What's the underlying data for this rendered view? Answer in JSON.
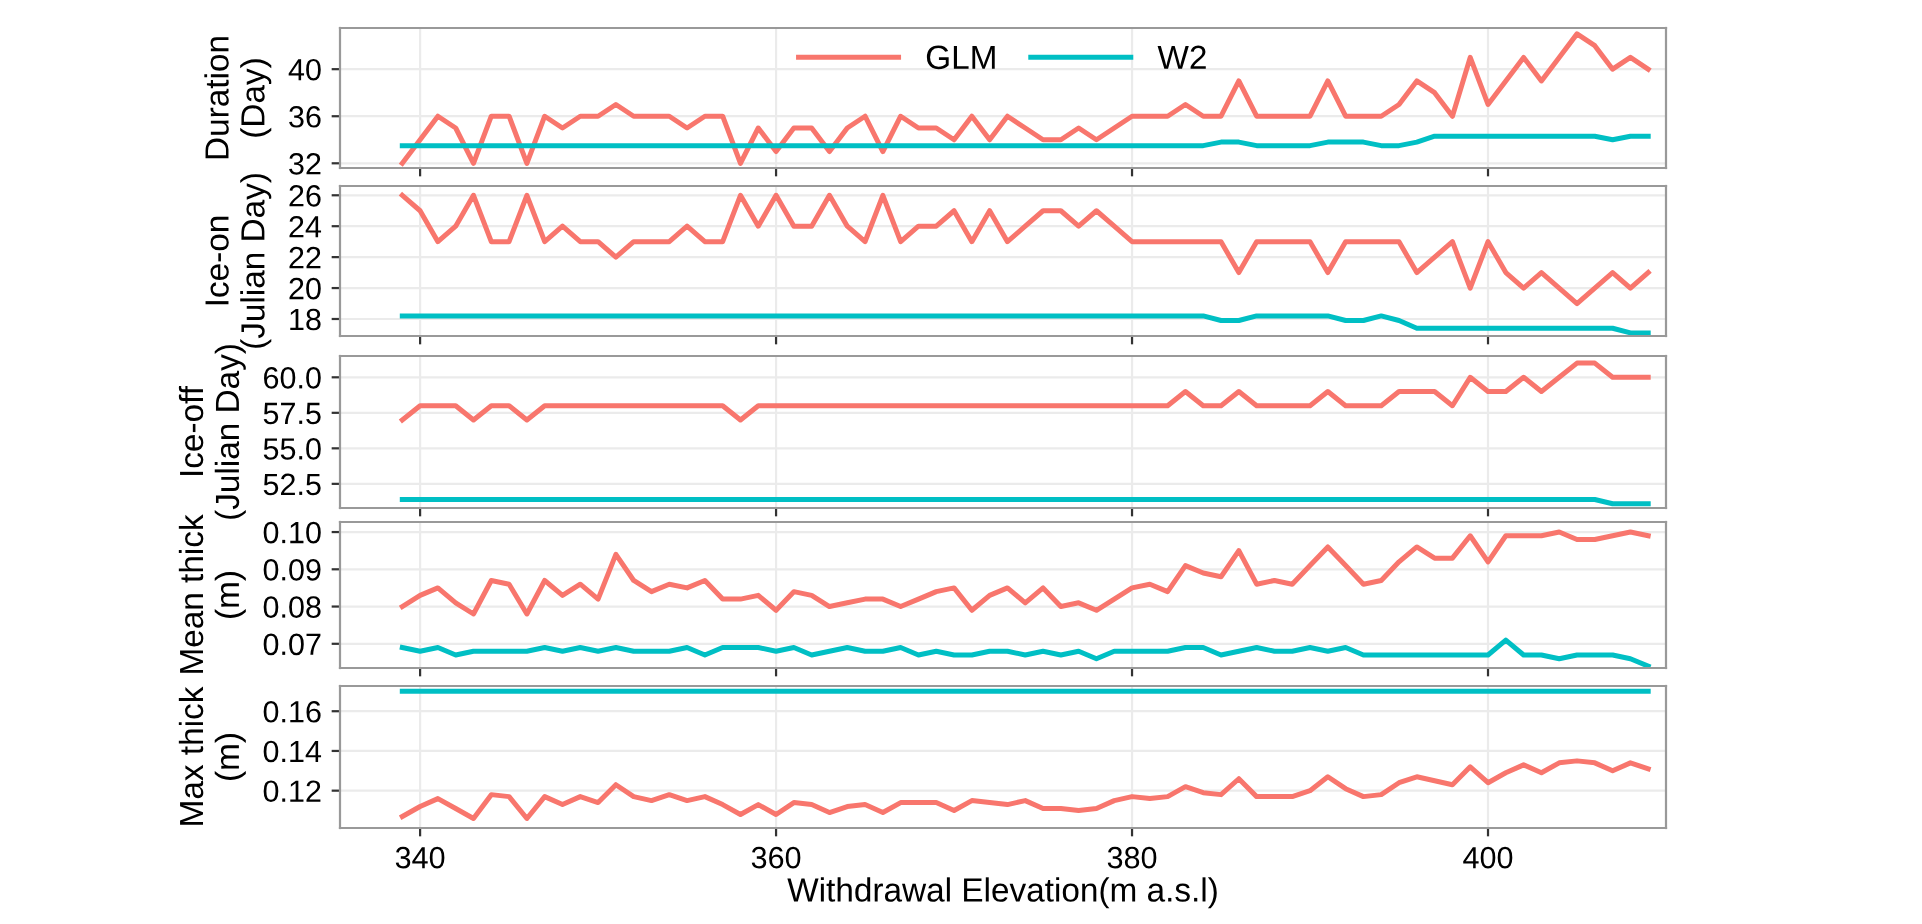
{
  "chart_data": [
    {
      "type": "line",
      "ylabel": "Duration\n(Day)",
      "legend": "top",
      "grid": true,
      "tick_labels": "y",
      "xlim": [
        335.5,
        410
      ],
      "xticks": [
        340,
        360,
        380,
        400
      ],
      "ylim": [
        31.6,
        43.5
      ],
      "yticks": [
        32,
        36,
        40
      ],
      "x": [
        339,
        340,
        341,
        342,
        343,
        344,
        345,
        346,
        347,
        348,
        349,
        350,
        351,
        352,
        353,
        354,
        355,
        356,
        357,
        358,
        359,
        360,
        361,
        362,
        363,
        364,
        365,
        366,
        367,
        368,
        369,
        370,
        371,
        372,
        373,
        374,
        375,
        376,
        377,
        378,
        379,
        380,
        381,
        382,
        383,
        384,
        385,
        386,
        387,
        388,
        389,
        390,
        391,
        392,
        393,
        394,
        395,
        396,
        397,
        398,
        399,
        400,
        401,
        402,
        403,
        404,
        405,
        406,
        407,
        408,
        409
      ],
      "series": [
        {
          "name": "GLM",
          "color": "#f8766d",
          "values": [
            32,
            34,
            36,
            35,
            32,
            36,
            36,
            32,
            36,
            35,
            36,
            36,
            37,
            36,
            36,
            36,
            35,
            36,
            36,
            32,
            35,
            33,
            35,
            35,
            33,
            35,
            36,
            33,
            36,
            35,
            35,
            34,
            36,
            34,
            36,
            35,
            34,
            34,
            35,
            34,
            35,
            36,
            36,
            36,
            37,
            36,
            36,
            39,
            36,
            36,
            36,
            36,
            39,
            36,
            36,
            36,
            37,
            39,
            38,
            36,
            41,
            37,
            39,
            41,
            39,
            41,
            43,
            42,
            40,
            41,
            40
          ]
        },
        {
          "name": "W2",
          "color": "#00bfc4",
          "values": [
            33.5,
            33.5,
            33.5,
            33.5,
            33.5,
            33.5,
            33.5,
            33.5,
            33.5,
            33.5,
            33.5,
            33.5,
            33.5,
            33.5,
            33.5,
            33.5,
            33.5,
            33.5,
            33.5,
            33.5,
            33.5,
            33.5,
            33.5,
            33.5,
            33.5,
            33.5,
            33.5,
            33.5,
            33.5,
            33.5,
            33.5,
            33.5,
            33.5,
            33.5,
            33.5,
            33.5,
            33.5,
            33.5,
            33.5,
            33.5,
            33.5,
            33.5,
            33.5,
            33.5,
            33.5,
            33.5,
            33.8,
            33.8,
            33.5,
            33.5,
            33.5,
            33.5,
            33.8,
            33.8,
            33.8,
            33.5,
            33.5,
            33.8,
            34.3,
            34.3,
            34.3,
            34.3,
            34.3,
            34.3,
            34.3,
            34.3,
            34.3,
            34.3,
            34.0,
            34.3,
            34.3
          ]
        }
      ]
    },
    {
      "type": "line",
      "ylabel": "Ice-on\n(Julian Day)",
      "grid": true,
      "tick_labels": "y",
      "xlim": [
        335.5,
        410
      ],
      "xticks": [
        340,
        360,
        380,
        400
      ],
      "ylim": [
        16.9,
        26.6
      ],
      "yticks": [
        18,
        20,
        22,
        24,
        26
      ],
      "x": [
        339,
        340,
        341,
        342,
        343,
        344,
        345,
        346,
        347,
        348,
        349,
        350,
        351,
        352,
        353,
        354,
        355,
        356,
        357,
        358,
        359,
        360,
        361,
        362,
        363,
        364,
        365,
        366,
        367,
        368,
        369,
        370,
        371,
        372,
        373,
        374,
        375,
        376,
        377,
        378,
        379,
        380,
        381,
        382,
        383,
        384,
        385,
        386,
        387,
        388,
        389,
        390,
        391,
        392,
        393,
        394,
        395,
        396,
        397,
        398,
        399,
        400,
        401,
        402,
        403,
        404,
        405,
        406,
        407,
        408,
        409
      ],
      "series": [
        {
          "color": "#f8766d",
          "values": [
            26,
            25,
            23,
            24,
            26,
            23,
            23,
            26,
            23,
            24,
            23,
            23,
            22,
            23,
            23,
            23,
            24,
            23,
            23,
            26,
            24,
            26,
            24,
            24,
            26,
            24,
            23,
            26,
            23,
            24,
            24,
            25,
            23,
            25,
            23,
            24,
            25,
            25,
            24,
            25,
            24,
            23,
            23,
            23,
            23,
            23,
            23,
            21,
            23,
            23,
            23,
            23,
            21,
            23,
            23,
            23,
            23,
            21,
            22,
            23,
            20,
            23,
            21,
            20,
            21,
            20,
            19,
            20,
            21,
            20,
            21
          ]
        },
        {
          "color": "#00bfc4",
          "values": [
            18.2,
            18.2,
            18.2,
            18.2,
            18.2,
            18.2,
            18.2,
            18.2,
            18.2,
            18.2,
            18.2,
            18.2,
            18.2,
            18.2,
            18.2,
            18.2,
            18.2,
            18.2,
            18.2,
            18.2,
            18.2,
            18.2,
            18.2,
            18.2,
            18.2,
            18.2,
            18.2,
            18.2,
            18.2,
            18.2,
            18.2,
            18.2,
            18.2,
            18.2,
            18.2,
            18.2,
            18.2,
            18.2,
            18.2,
            18.2,
            18.2,
            18.2,
            18.2,
            18.2,
            18.2,
            18.2,
            17.9,
            17.9,
            18.2,
            18.2,
            18.2,
            18.2,
            18.2,
            17.9,
            17.9,
            18.2,
            17.9,
            17.4,
            17.4,
            17.4,
            17.4,
            17.4,
            17.4,
            17.4,
            17.4,
            17.4,
            17.4,
            17.4,
            17.4,
            17.1,
            17.1
          ]
        }
      ]
    },
    {
      "type": "line",
      "ylabel": "Ice-off\n(Julian Day)",
      "grid": true,
      "tick_labels": "y",
      "xlim": [
        335.5,
        410
      ],
      "xticks": [
        340,
        360,
        380,
        400
      ],
      "ylim": [
        50.8,
        61.5
      ],
      "yticks": [
        52.5,
        {
          "value": 55,
          "label": "55.0"
        },
        57.5,
        {
          "value": 60,
          "label": "60.0"
        }
      ],
      "x": [
        339,
        340,
        341,
        342,
        343,
        344,
        345,
        346,
        347,
        348,
        349,
        350,
        351,
        352,
        353,
        354,
        355,
        356,
        357,
        358,
        359,
        360,
        361,
        362,
        363,
        364,
        365,
        366,
        367,
        368,
        369,
        370,
        371,
        372,
        373,
        374,
        375,
        376,
        377,
        378,
        379,
        380,
        381,
        382,
        383,
        384,
        385,
        386,
        387,
        388,
        389,
        390,
        391,
        392,
        393,
        394,
        395,
        396,
        397,
        398,
        399,
        400,
        401,
        402,
        403,
        404,
        405,
        406,
        407,
        408,
        409
      ],
      "series": [
        {
          "color": "#f8766d",
          "values": [
            57,
            58,
            58,
            58,
            57,
            58,
            58,
            57,
            58,
            58,
            58,
            58,
            58,
            58,
            58,
            58,
            58,
            58,
            58,
            57,
            58,
            58,
            58,
            58,
            58,
            58,
            58,
            58,
            58,
            58,
            58,
            58,
            58,
            58,
            58,
            58,
            58,
            58,
            58,
            58,
            58,
            58,
            58,
            58,
            59,
            58,
            58,
            59,
            58,
            58,
            58,
            58,
            59,
            58,
            58,
            58,
            59,
            59,
            59,
            58,
            60,
            59,
            59,
            60,
            59,
            60,
            61,
            61,
            60,
            60,
            60
          ]
        },
        {
          "color": "#00bfc4",
          "values": [
            51.4,
            51.4,
            51.4,
            51.4,
            51.4,
            51.4,
            51.4,
            51.4,
            51.4,
            51.4,
            51.4,
            51.4,
            51.4,
            51.4,
            51.4,
            51.4,
            51.4,
            51.4,
            51.4,
            51.4,
            51.4,
            51.4,
            51.4,
            51.4,
            51.4,
            51.4,
            51.4,
            51.4,
            51.4,
            51.4,
            51.4,
            51.4,
            51.4,
            51.4,
            51.4,
            51.4,
            51.4,
            51.4,
            51.4,
            51.4,
            51.4,
            51.4,
            51.4,
            51.4,
            51.4,
            51.4,
            51.4,
            51.4,
            51.4,
            51.4,
            51.4,
            51.4,
            51.4,
            51.4,
            51.4,
            51.4,
            51.4,
            51.4,
            51.4,
            51.4,
            51.4,
            51.4,
            51.4,
            51.4,
            51.4,
            51.4,
            51.4,
            51.4,
            51.1,
            51.1,
            51.1
          ]
        }
      ]
    },
    {
      "type": "line",
      "ylabel": "Mean thick\n(m)",
      "grid": true,
      "tick_labels": "y",
      "xlim": [
        335.5,
        410
      ],
      "xticks": [
        340,
        360,
        380,
        400
      ],
      "ylim": [
        0.0635,
        0.1027
      ],
      "yticks": [
        0.07,
        0.08,
        0.09,
        {
          "value": 0.1,
          "label": "0.10"
        }
      ],
      "x": [
        339,
        340,
        341,
        342,
        343,
        344,
        345,
        346,
        347,
        348,
        349,
        350,
        351,
        352,
        353,
        354,
        355,
        356,
        357,
        358,
        359,
        360,
        361,
        362,
        363,
        364,
        365,
        366,
        367,
        368,
        369,
        370,
        371,
        372,
        373,
        374,
        375,
        376,
        377,
        378,
        379,
        380,
        381,
        382,
        383,
        384,
        385,
        386,
        387,
        388,
        389,
        390,
        391,
        392,
        393,
        394,
        395,
        396,
        397,
        398,
        399,
        400,
        401,
        402,
        403,
        404,
        405,
        406,
        407,
        408,
        409
      ],
      "series": [
        {
          "color": "#f8766d",
          "values": [
            0.08,
            0.083,
            0.085,
            0.081,
            0.078,
            0.087,
            0.086,
            0.078,
            0.087,
            0.083,
            0.086,
            0.082,
            0.094,
            0.087,
            0.084,
            0.086,
            0.085,
            0.087,
            0.082,
            0.082,
            0.083,
            0.079,
            0.084,
            0.083,
            0.08,
            0.081,
            0.082,
            0.082,
            0.08,
            0.082,
            0.084,
            0.085,
            0.079,
            0.083,
            0.085,
            0.081,
            0.085,
            0.08,
            0.081,
            0.079,
            0.082,
            0.085,
            0.086,
            0.084,
            0.091,
            0.089,
            0.088,
            0.095,
            0.086,
            0.087,
            0.086,
            0.091,
            0.096,
            0.091,
            0.086,
            0.087,
            0.092,
            0.096,
            0.093,
            0.093,
            0.099,
            0.092,
            0.099,
            0.099,
            0.099,
            0.1,
            0.098,
            0.098,
            0.099,
            0.1,
            0.099
          ]
        },
        {
          "color": "#00bfc4",
          "values": [
            0.069,
            0.068,
            0.069,
            0.067,
            0.068,
            0.068,
            0.068,
            0.068,
            0.069,
            0.068,
            0.069,
            0.068,
            0.069,
            0.068,
            0.068,
            0.068,
            0.069,
            0.067,
            0.069,
            0.069,
            0.069,
            0.068,
            0.069,
            0.067,
            0.068,
            0.069,
            0.068,
            0.068,
            0.069,
            0.067,
            0.068,
            0.067,
            0.067,
            0.068,
            0.068,
            0.067,
            0.068,
            0.067,
            0.068,
            0.066,
            0.068,
            0.068,
            0.068,
            0.068,
            0.069,
            0.069,
            0.067,
            0.068,
            0.069,
            0.068,
            0.068,
            0.069,
            0.068,
            0.069,
            0.067,
            0.067,
            0.067,
            0.067,
            0.067,
            0.067,
            0.067,
            0.067,
            0.071,
            0.067,
            0.067,
            0.066,
            0.067,
            0.067,
            0.067,
            0.066,
            0.064
          ]
        }
      ]
    },
    {
      "type": "line",
      "ylabel": "Max thick\n(m)",
      "xlabel": "Withdrawal Elevation(m a.s.l)",
      "grid": true,
      "xlim": [
        335.5,
        410
      ],
      "ylim": [
        0.1012,
        0.1727
      ],
      "xticks": [
        340,
        360,
        380,
        400
      ],
      "yticks": [
        0.12,
        0.14,
        0.16
      ],
      "x": [
        339,
        340,
        341,
        342,
        343,
        344,
        345,
        346,
        347,
        348,
        349,
        350,
        351,
        352,
        353,
        354,
        355,
        356,
        357,
        358,
        359,
        360,
        361,
        362,
        363,
        364,
        365,
        366,
        367,
        368,
        369,
        370,
        371,
        372,
        373,
        374,
        375,
        376,
        377,
        378,
        379,
        380,
        381,
        382,
        383,
        384,
        385,
        386,
        387,
        388,
        389,
        390,
        391,
        392,
        393,
        394,
        395,
        396,
        397,
        398,
        399,
        400,
        401,
        402,
        403,
        404,
        405,
        406,
        407,
        408,
        409
      ],
      "series": [
        {
          "color": "#f8766d",
          "values": [
            0.107,
            0.112,
            0.116,
            0.111,
            0.106,
            0.118,
            0.117,
            0.106,
            0.117,
            0.113,
            0.117,
            0.114,
            0.123,
            0.117,
            0.115,
            0.118,
            0.115,
            0.117,
            0.113,
            0.108,
            0.113,
            0.108,
            0.114,
            0.113,
            0.109,
            0.112,
            0.113,
            0.109,
            0.114,
            0.114,
            0.114,
            0.11,
            0.115,
            0.114,
            0.113,
            0.115,
            0.111,
            0.111,
            0.11,
            0.111,
            0.115,
            0.117,
            0.116,
            0.117,
            0.122,
            0.119,
            0.118,
            0.126,
            0.117,
            0.117,
            0.117,
            0.12,
            0.127,
            0.121,
            0.117,
            0.118,
            0.124,
            0.127,
            0.125,
            0.123,
            0.132,
            0.124,
            0.129,
            0.133,
            0.129,
            0.134,
            0.135,
            0.134,
            0.13,
            0.134,
            0.131
          ]
        },
        {
          "color": "#00bfc4",
          "values": [
            0.17,
            0.17,
            0.17,
            0.17,
            0.17,
            0.17,
            0.17,
            0.17,
            0.17,
            0.17,
            0.17,
            0.17,
            0.17,
            0.17,
            0.17,
            0.17,
            0.17,
            0.17,
            0.17,
            0.17,
            0.17,
            0.17,
            0.17,
            0.17,
            0.17,
            0.17,
            0.17,
            0.17,
            0.17,
            0.17,
            0.17,
            0.17,
            0.17,
            0.17,
            0.17,
            0.17,
            0.17,
            0.17,
            0.17,
            0.17,
            0.17,
            0.17,
            0.17,
            0.17,
            0.17,
            0.17,
            0.17,
            0.17,
            0.17,
            0.17,
            0.17,
            0.17,
            0.17,
            0.17,
            0.17,
            0.17,
            0.17,
            0.17,
            0.17,
            0.17,
            0.17,
            0.17,
            0.17,
            0.17,
            0.17,
            0.17,
            0.17,
            0.17,
            0.17,
            0.17,
            0.17
          ]
        }
      ]
    }
  ]
}
